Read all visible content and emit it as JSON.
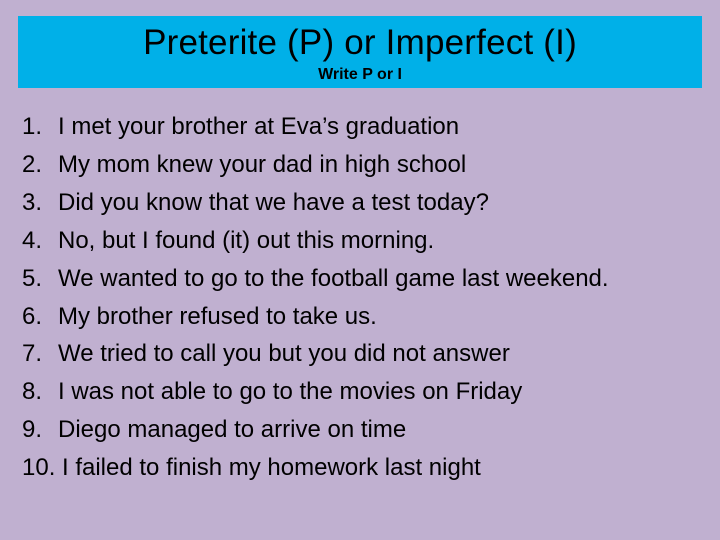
{
  "header": {
    "title": "Preterite (P) or Imperfect (I)",
    "subtitle": "Write P or I",
    "box_bg": "#00b0e8",
    "title_color": "#000000",
    "title_fontsize": 35,
    "subtitle_fontsize": 16
  },
  "page": {
    "bg_color": "#c0b0d0",
    "list_fontsize": 24,
    "list_color": "#000000"
  },
  "sentences": [
    {
      "n": "1.",
      "text": "I met your brother at Eva’s graduation"
    },
    {
      "n": "2.",
      "text": "My mom knew your dad in high school"
    },
    {
      "n": "3.",
      "text": "Did you know that we have a test today?"
    },
    {
      "n": "4.",
      "text": "No, but I found (it) out this morning."
    },
    {
      "n": "5.",
      "text": "We wanted to go to the football game last weekend."
    },
    {
      "n": "6.",
      "text": "My brother refused to take us."
    },
    {
      "n": "7.",
      "text": "We tried to call you but you did not answer"
    },
    {
      "n": "8.",
      "text": "I was not able to go to the movies on Friday"
    },
    {
      "n": "9.",
      "text": "Diego managed to arrive on time"
    },
    {
      "n": "10.",
      "text": "I failed to finish my homework last night"
    }
  ]
}
